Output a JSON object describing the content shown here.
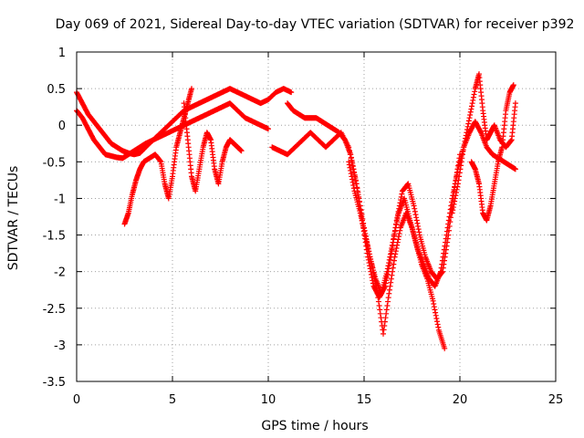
{
  "chart_data": {
    "type": "scatter",
    "title": "Day 069 of 2021, Sidereal Day-to-day VTEC variation (SDTVAR) for receiver p392",
    "xlabel": "GPS time / hours",
    "ylabel": "SDTVAR / TECUs",
    "xlim": [
      0,
      25
    ],
    "ylim": [
      -3.5,
      1
    ],
    "x_ticks": [
      0,
      5,
      10,
      15,
      20,
      25
    ],
    "y_ticks": [
      1,
      0.5,
      0,
      -0.5,
      -1,
      -1.5,
      -2,
      -2.5,
      -3,
      -3.5
    ],
    "grid": true,
    "marker": "+",
    "series": [
      {
        "name": "SDTVAR",
        "color": "#ff0000",
        "traces": [
          {
            "x": [
              0.0,
              0.3,
              0.6,
              0.9,
              1.2,
              1.5,
              1.8,
              2.1,
              2.4,
              2.7,
              3.0,
              3.3,
              3.6,
              4.0,
              4.4,
              4.8,
              5.2,
              5.6,
              6.0,
              6.4,
              6.8,
              7.2,
              7.6,
              8.0,
              8.4,
              8.8,
              9.2,
              9.6,
              10.0,
              10.4,
              10.8,
              11.2
            ],
            "y": [
              0.45,
              0.3,
              0.15,
              0.05,
              -0.05,
              -0.15,
              -0.25,
              -0.3,
              -0.35,
              -0.38,
              -0.4,
              -0.38,
              -0.3,
              -0.2,
              -0.1,
              0.0,
              0.1,
              0.2,
              0.25,
              0.3,
              0.35,
              0.4,
              0.45,
              0.5,
              0.45,
              0.4,
              0.35,
              0.3,
              0.35,
              0.45,
              0.5,
              0.45
            ]
          },
          {
            "x": [
              0.0,
              0.3,
              0.6,
              0.9,
              1.2,
              1.5,
              1.8,
              2.1,
              2.4,
              2.7,
              3.0,
              3.3,
              3.6,
              4.0,
              4.4,
              4.8,
              5.2,
              5.6,
              6.0,
              6.4,
              6.8,
              7.2,
              7.6,
              8.0,
              8.4,
              8.8,
              9.2,
              9.6,
              10.0
            ],
            "y": [
              0.2,
              0.1,
              -0.05,
              -0.2,
              -0.3,
              -0.4,
              -0.42,
              -0.44,
              -0.45,
              -0.4,
              -0.35,
              -0.3,
              -0.25,
              -0.2,
              -0.15,
              -0.1,
              -0.05,
              0.0,
              0.05,
              0.1,
              0.15,
              0.2,
              0.25,
              0.3,
              0.2,
              0.1,
              0.05,
              0.0,
              -0.05
            ]
          },
          {
            "x": [
              2.5,
              2.7,
              2.9,
              3.1,
              3.3,
              3.5,
              3.8,
              4.1,
              4.4,
              4.6,
              4.8,
              5.0,
              5.2,
              5.4,
              5.6,
              5.8,
              6.0
            ],
            "y": [
              -1.35,
              -1.2,
              -0.95,
              -0.75,
              -0.6,
              -0.5,
              -0.45,
              -0.4,
              -0.5,
              -0.8,
              -1.0,
              -0.7,
              -0.3,
              -0.1,
              0.1,
              0.3,
              0.5
            ]
          },
          {
            "x": [
              5.6,
              5.8,
              6.0,
              6.2,
              6.4,
              6.6,
              6.8,
              7.0,
              7.2,
              7.4,
              7.6,
              7.8,
              8.0,
              8.2,
              8.4,
              8.6
            ],
            "y": [
              0.3,
              -0.2,
              -0.7,
              -0.9,
              -0.6,
              -0.3,
              -0.1,
              -0.2,
              -0.6,
              -0.8,
              -0.5,
              -0.3,
              -0.2,
              -0.25,
              -0.3,
              -0.35
            ]
          },
          {
            "x": [
              11.0,
              11.3,
              11.6,
              11.9,
              12.2,
              12.5,
              12.8,
              13.1,
              13.4,
              13.7,
              14.0,
              14.3,
              14.6,
              14.9,
              15.2,
              15.5,
              15.8,
              16.1,
              16.4,
              16.7,
              17.0,
              17.3,
              17.6,
              17.9,
              18.2,
              18.5,
              18.8,
              19.1,
              19.4,
              19.7,
              20.0
            ],
            "y": [
              0.3,
              0.2,
              0.15,
              0.1,
              0.1,
              0.1,
              0.05,
              0.0,
              -0.05,
              -0.1,
              -0.2,
              -0.4,
              -0.8,
              -1.3,
              -1.8,
              -2.2,
              -2.35,
              -2.2,
              -1.8,
              -1.3,
              -0.9,
              -0.8,
              -1.1,
              -1.5,
              -1.8,
              -2.0,
              -2.1,
              -2.0,
              -1.5,
              -0.9,
              -0.4
            ]
          },
          {
            "x": [
              10.2,
              10.6,
              11.0,
              11.4,
              11.8,
              12.2,
              12.6,
              13.0,
              13.4,
              13.8,
              14.2,
              14.6,
              15.0,
              15.3,
              15.6,
              15.9,
              16.2,
              16.5,
              16.8,
              17.1,
              17.4,
              17.7,
              18.0,
              18.3,
              18.6,
              18.9,
              19.2
            ],
            "y": [
              -0.3,
              -0.35,
              -0.4,
              -0.3,
              -0.2,
              -0.1,
              -0.2,
              -0.3,
              -0.2,
              -0.1,
              -0.3,
              -0.8,
              -1.4,
              -1.8,
              -2.1,
              -2.3,
              -2.0,
              -1.6,
              -1.2,
              -1.0,
              -1.3,
              -1.6,
              -1.9,
              -2.1,
              -2.4,
              -2.8,
              -3.05
            ]
          },
          {
            "x": [
              14.2,
              14.5,
              14.8,
              15.1,
              15.4,
              15.7,
              16.0,
              16.3,
              16.6,
              16.9,
              17.2,
              17.5,
              17.8,
              18.1,
              18.4,
              18.7,
              19.0
            ],
            "y": [
              -0.5,
              -0.9,
              -1.2,
              -1.55,
              -1.9,
              -2.3,
              -2.85,
              -2.3,
              -1.8,
              -1.4,
              -1.2,
              -1.4,
              -1.7,
              -1.9,
              -2.1,
              -2.2,
              -2.0
            ]
          },
          {
            "x": [
              19.0,
              19.3,
              19.6,
              19.9,
              20.2,
              20.5,
              20.8,
              21.1,
              21.4,
              21.7,
              22.0,
              22.3,
              22.6,
              22.9
            ],
            "y": [
              -2.0,
              -1.5,
              -1.0,
              -0.6,
              -0.3,
              -0.1,
              0.05,
              -0.1,
              -0.3,
              -0.4,
              -0.45,
              -0.5,
              -0.55,
              -0.6
            ]
          },
          {
            "x": [
              19.6,
              19.9,
              20.2,
              20.5,
              20.8,
              21.0,
              21.2,
              21.4,
              21.6,
              21.8,
              22.1,
              22.4,
              22.7,
              22.9
            ],
            "y": [
              -1.2,
              -0.8,
              -0.3,
              0.1,
              0.5,
              0.7,
              0.2,
              -0.2,
              -0.1,
              0.0,
              -0.2,
              -0.3,
              -0.2,
              0.3
            ]
          },
          {
            "x": [
              20.6,
              20.8,
              21.0,
              21.2,
              21.4,
              21.6,
              21.8,
              22.0,
              22.2,
              22.4,
              22.6,
              22.8
            ],
            "y": [
              -0.5,
              -0.6,
              -0.8,
              -1.2,
              -1.3,
              -1.1,
              -0.8,
              -0.5,
              -0.3,
              0.2,
              0.45,
              0.55
            ]
          }
        ]
      }
    ]
  }
}
